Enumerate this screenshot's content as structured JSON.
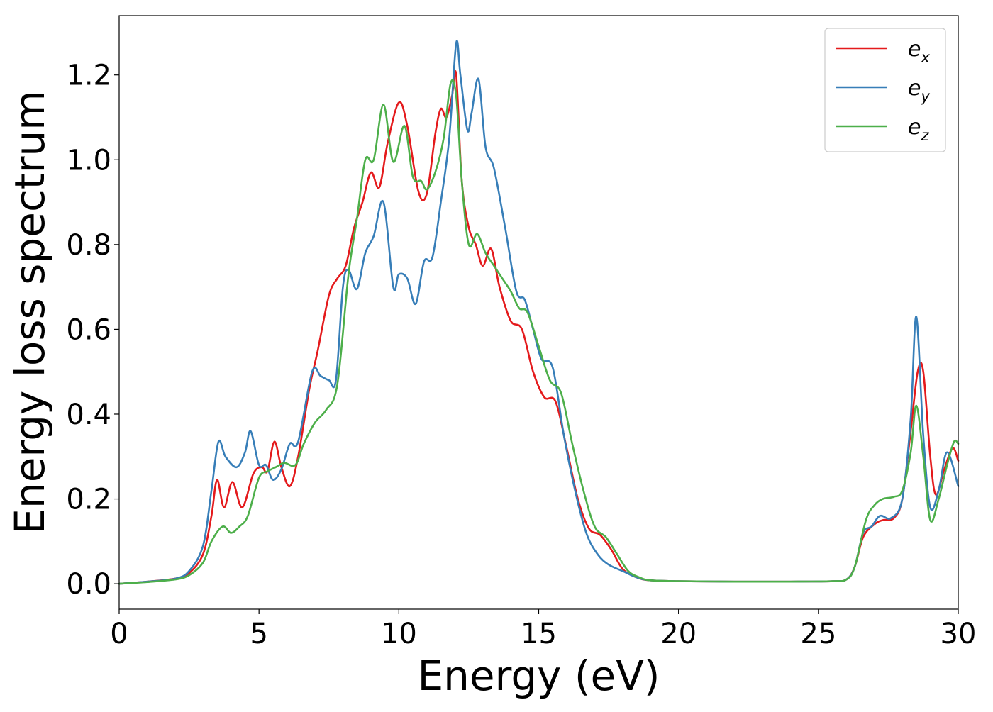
{
  "chart_data": {
    "type": "line",
    "title": "",
    "xlabel": "Energy (eV)",
    "ylabel": "Energy loss spectrum",
    "xlim": [
      0,
      30
    ],
    "ylim": [
      -0.06,
      1.34
    ],
    "xticks": [
      0,
      5,
      10,
      15,
      20,
      25,
      30
    ],
    "xtick_labels": [
      "0",
      "5",
      "10",
      "15",
      "20",
      "25",
      "30"
    ],
    "yticks": [
      0.0,
      0.2,
      0.4,
      0.6,
      0.8,
      1.0,
      1.2
    ],
    "ytick_labels": [
      "0.0",
      "0.2",
      "0.4",
      "0.6",
      "0.8",
      "1.0",
      "1.2"
    ],
    "grid": false,
    "legend_position": "top-right",
    "series": [
      {
        "name": "e_x",
        "legend_base": "e",
        "legend_sub": "x",
        "color": "#e41a1c",
        "x": [
          0,
          1,
          2,
          2.5,
          3,
          3.3,
          3.5,
          3.75,
          4.05,
          4.4,
          4.8,
          5.1,
          5.3,
          5.55,
          5.8,
          6.1,
          6.4,
          6.8,
          7.1,
          7.5,
          7.8,
          8.1,
          8.4,
          8.7,
          9.0,
          9.3,
          9.6,
          10.0,
          10.3,
          10.7,
          11.0,
          11.3,
          11.5,
          11.7,
          11.9,
          12.05,
          12.25,
          12.5,
          12.75,
          13.0,
          13.3,
          13.6,
          14.0,
          14.4,
          14.8,
          15.2,
          15.6,
          16.0,
          16.4,
          16.8,
          17.2,
          17.6,
          18.0,
          18.5,
          19.0,
          20,
          22,
          24,
          25.5,
          26,
          26.3,
          26.6,
          27.0,
          27.3,
          27.7,
          28.0,
          28.3,
          28.55,
          28.75,
          29.0,
          29.2,
          29.5,
          29.8,
          30
        ],
        "values": [
          0.0,
          0.005,
          0.012,
          0.025,
          0.07,
          0.16,
          0.245,
          0.18,
          0.24,
          0.18,
          0.26,
          0.275,
          0.265,
          0.335,
          0.275,
          0.23,
          0.3,
          0.46,
          0.55,
          0.68,
          0.72,
          0.75,
          0.84,
          0.9,
          0.97,
          0.935,
          1.04,
          1.135,
          1.08,
          0.925,
          0.92,
          1.06,
          1.12,
          1.1,
          1.15,
          1.2,
          0.95,
          0.84,
          0.8,
          0.75,
          0.79,
          0.7,
          0.62,
          0.6,
          0.5,
          0.44,
          0.43,
          0.32,
          0.2,
          0.13,
          0.115,
          0.08,
          0.035,
          0.015,
          0.008,
          0.006,
          0.005,
          0.005,
          0.006,
          0.01,
          0.04,
          0.11,
          0.14,
          0.15,
          0.155,
          0.2,
          0.36,
          0.5,
          0.5,
          0.3,
          0.21,
          0.27,
          0.32,
          0.29
        ]
      },
      {
        "name": "e_y",
        "legend_base": "e",
        "legend_sub": "y",
        "color": "#377eb8",
        "x": [
          0,
          1,
          2,
          2.5,
          3,
          3.3,
          3.55,
          3.8,
          4.2,
          4.5,
          4.7,
          5.0,
          5.25,
          5.5,
          5.8,
          6.1,
          6.4,
          6.9,
          7.2,
          7.5,
          7.75,
          8.0,
          8.2,
          8.5,
          8.8,
          9.1,
          9.45,
          9.8,
          10.0,
          10.3,
          10.6,
          10.9,
          11.2,
          11.5,
          11.8,
          12.05,
          12.2,
          12.45,
          12.6,
          12.85,
          13.1,
          13.4,
          13.8,
          14.2,
          14.5,
          14.8,
          15.1,
          15.5,
          15.9,
          16.3,
          16.7,
          17.1,
          17.5,
          18.0,
          18.5,
          19.0,
          20,
          22,
          24,
          25.5,
          26,
          26.3,
          26.6,
          26.9,
          27.2,
          27.6,
          28.0,
          28.3,
          28.5,
          28.75,
          29.0,
          29.3,
          29.6,
          30
        ],
        "values": [
          0.0,
          0.005,
          0.012,
          0.03,
          0.09,
          0.22,
          0.335,
          0.3,
          0.275,
          0.31,
          0.36,
          0.28,
          0.28,
          0.245,
          0.27,
          0.33,
          0.335,
          0.5,
          0.49,
          0.48,
          0.48,
          0.7,
          0.74,
          0.695,
          0.78,
          0.82,
          0.9,
          0.7,
          0.73,
          0.72,
          0.66,
          0.76,
          0.77,
          0.9,
          1.05,
          1.275,
          1.2,
          1.07,
          1.11,
          1.19,
          1.03,
          0.98,
          0.84,
          0.69,
          0.67,
          0.6,
          0.53,
          0.51,
          0.35,
          0.22,
          0.12,
          0.07,
          0.045,
          0.03,
          0.015,
          0.008,
          0.006,
          0.005,
          0.005,
          0.006,
          0.01,
          0.04,
          0.12,
          0.135,
          0.16,
          0.155,
          0.2,
          0.39,
          0.63,
          0.35,
          0.18,
          0.22,
          0.31,
          0.23
        ]
      },
      {
        "name": "e_z",
        "legend_base": "e",
        "legend_sub": "z",
        "color": "#4daf4a",
        "x": [
          0,
          1,
          2,
          2.5,
          3,
          3.3,
          3.7,
          4.0,
          4.3,
          4.6,
          5.0,
          5.3,
          5.6,
          5.9,
          6.3,
          6.6,
          7.0,
          7.4,
          7.8,
          8.2,
          8.5,
          8.8,
          9.1,
          9.45,
          9.8,
          10.2,
          10.5,
          10.8,
          11.0,
          11.3,
          11.6,
          11.85,
          12.05,
          12.25,
          12.5,
          12.8,
          13.1,
          13.4,
          13.7,
          14.0,
          14.3,
          14.6,
          15.0,
          15.4,
          15.8,
          16.2,
          16.6,
          17.0,
          17.4,
          17.8,
          18.2,
          18.6,
          19.0,
          20,
          22,
          24,
          25.5,
          26,
          26.3,
          26.7,
          27.0,
          27.3,
          27.7,
          28.0,
          28.3,
          28.5,
          28.75,
          29.0,
          29.3,
          29.6,
          29.85,
          30
        ],
        "values": [
          0.0,
          0.004,
          0.01,
          0.02,
          0.05,
          0.1,
          0.135,
          0.12,
          0.135,
          0.16,
          0.25,
          0.265,
          0.275,
          0.285,
          0.28,
          0.33,
          0.38,
          0.41,
          0.47,
          0.73,
          0.86,
          1.0,
          1.0,
          1.13,
          0.995,
          1.08,
          0.96,
          0.95,
          0.93,
          0.97,
          1.05,
          1.18,
          1.15,
          0.95,
          0.8,
          0.825,
          0.78,
          0.75,
          0.72,
          0.69,
          0.65,
          0.64,
          0.56,
          0.48,
          0.45,
          0.33,
          0.22,
          0.135,
          0.11,
          0.07,
          0.03,
          0.015,
          0.008,
          0.006,
          0.005,
          0.005,
          0.006,
          0.01,
          0.04,
          0.15,
          0.185,
          0.2,
          0.205,
          0.22,
          0.31,
          0.42,
          0.3,
          0.15,
          0.2,
          0.28,
          0.335,
          0.33
        ]
      }
    ]
  }
}
